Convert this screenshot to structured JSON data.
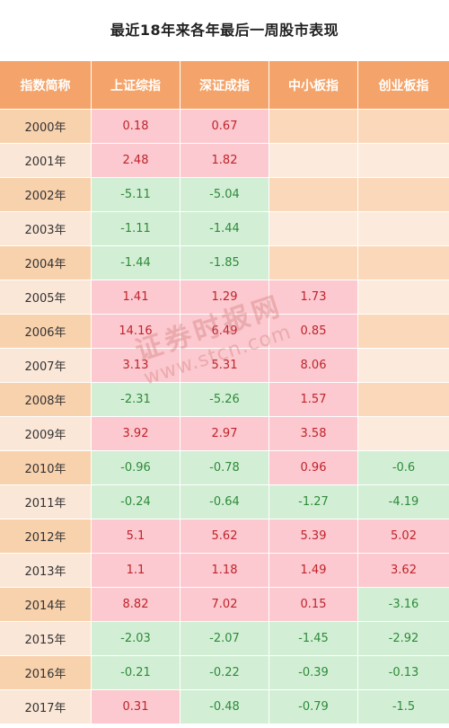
{
  "title": "最近18年来各年最后一周股市表现",
  "watermark": {
    "line1": "证券时报网",
    "line2": "www.stcn.com"
  },
  "colors": {
    "header": "#f4a46a",
    "positive": "#fbc9cf",
    "negative": "#d2efd5",
    "pos_text": "#c0232c",
    "neg_text": "#2f8a3a"
  },
  "chart_data": {
    "type": "table",
    "title": "最近18年来各年最后一周股市表现",
    "columns": [
      "指数简称",
      "上证综指",
      "深证成指",
      "中小板指",
      "创业板指"
    ],
    "rows": [
      {
        "year": "2000年",
        "values": [
          "0.18",
          "0.67",
          "",
          ""
        ]
      },
      {
        "year": "2001年",
        "values": [
          "2.48",
          "1.82",
          "",
          ""
        ]
      },
      {
        "year": "2002年",
        "values": [
          "-5.11",
          "-5.04",
          "",
          ""
        ]
      },
      {
        "year": "2003年",
        "values": [
          "-1.11",
          "-1.44",
          "",
          ""
        ]
      },
      {
        "year": "2004年",
        "values": [
          "-1.44",
          "-1.85",
          "",
          ""
        ]
      },
      {
        "year": "2005年",
        "values": [
          "1.41",
          "1.29",
          "1.73",
          ""
        ]
      },
      {
        "year": "2006年",
        "values": [
          "14.16",
          "6.49",
          "0.85",
          ""
        ]
      },
      {
        "year": "2007年",
        "values": [
          "3.13",
          "5.31",
          "8.06",
          ""
        ]
      },
      {
        "year": "2008年",
        "values": [
          "-2.31",
          "-5.26",
          "1.57",
          ""
        ]
      },
      {
        "year": "2009年",
        "values": [
          "3.92",
          "2.97",
          "3.58",
          ""
        ]
      },
      {
        "year": "2010年",
        "values": [
          "-0.96",
          "-0.78",
          "0.96",
          "-0.6"
        ]
      },
      {
        "year": "2011年",
        "values": [
          "-0.24",
          "-0.64",
          "-1.27",
          "-4.19"
        ]
      },
      {
        "year": "2012年",
        "values": [
          "5.1",
          "5.62",
          "5.39",
          "5.02"
        ]
      },
      {
        "year": "2013年",
        "values": [
          "1.1",
          "1.18",
          "1.49",
          "3.62"
        ]
      },
      {
        "year": "2014年",
        "values": [
          "8.82",
          "7.02",
          "0.15",
          "-3.16"
        ]
      },
      {
        "year": "2015年",
        "values": [
          "-2.03",
          "-2.07",
          "-1.45",
          "-2.92"
        ]
      },
      {
        "year": "2016年",
        "values": [
          "-0.21",
          "-0.22",
          "-0.39",
          "-0.13"
        ]
      },
      {
        "year": "2017年",
        "values": [
          "0.31",
          "-0.48",
          "-0.79",
          "-1.5"
        ]
      }
    ]
  }
}
